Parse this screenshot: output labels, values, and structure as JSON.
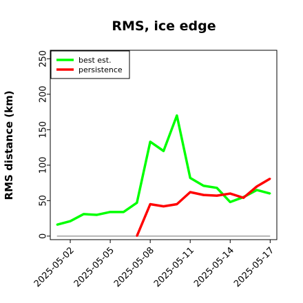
{
  "chart_data": {
    "type": "line",
    "title": "RMS, ice edge",
    "xlabel": "",
    "ylabel": "RMS distance (km)",
    "x": [
      "2025-05-01",
      "2025-05-02",
      "2025-05-03",
      "2025-05-04",
      "2025-05-05",
      "2025-05-06",
      "2025-05-07",
      "2025-05-08",
      "2025-05-09",
      "2025-05-10",
      "2025-05-11",
      "2025-05-12",
      "2025-05-13",
      "2025-05-14",
      "2025-05-15",
      "2025-05-16",
      "2025-05-17"
    ],
    "x_tick_labels": [
      "2025-05-02",
      "2025-05-05",
      "2025-05-08",
      "2025-05-11",
      "2025-05-14",
      "2025-05-17"
    ],
    "y_ticks": [
      0,
      50,
      100,
      150,
      200,
      250
    ],
    "ylim": [
      -5,
      262
    ],
    "xlim": [
      "2025-04-30T12:00",
      "2025-05-17T12:00"
    ],
    "zero_line": 0,
    "grid": false,
    "legend_position": "top-left",
    "series": [
      {
        "name": "best est.",
        "color": "#00ff00",
        "values": [
          16,
          21,
          31,
          30,
          34,
          34,
          47,
          133,
          120,
          170,
          82,
          71,
          68,
          48,
          55,
          65,
          60
        ]
      },
      {
        "name": "persistence",
        "color": "#ff0000",
        "values": [
          null,
          null,
          null,
          null,
          null,
          null,
          0,
          45,
          42,
          45,
          62,
          58,
          57,
          60,
          54,
          70,
          81
        ]
      }
    ]
  }
}
